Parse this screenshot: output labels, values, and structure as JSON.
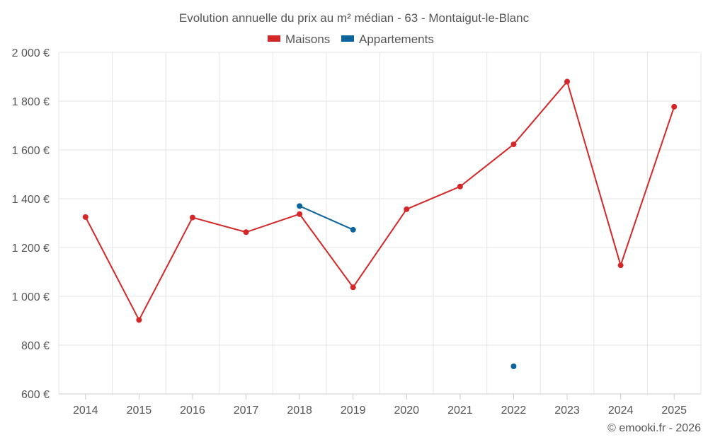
{
  "chart_data": {
    "type": "line",
    "title": "Evolution annuelle du prix au m² médian - 63 - Montaigut-le-Blanc",
    "categories": [
      "2014",
      "2015",
      "2016",
      "2017",
      "2018",
      "2019",
      "2020",
      "2021",
      "2022",
      "2023",
      "2024",
      "2025"
    ],
    "series": [
      {
        "name": "Maisons",
        "color": "#d62728",
        "values": [
          1325,
          903,
          1323,
          1263,
          1337,
          1037,
          1357,
          1450,
          1623,
          1880,
          1127,
          1777
        ]
      },
      {
        "name": "Appartements",
        "color": "#0c649c",
        "values": [
          null,
          null,
          null,
          null,
          1370,
          1273,
          null,
          null,
          713,
          null,
          null,
          null
        ]
      }
    ],
    "ylim": [
      600,
      2000
    ],
    "yticks": [
      600,
      800,
      1000,
      1200,
      1400,
      1600,
      1800,
      2000
    ],
    "ytick_labels": [
      "600 €",
      "800 €",
      "1 000 €",
      "1 200 €",
      "1 400 €",
      "1 600 €",
      "1 800 €",
      "2 000 €"
    ],
    "xlabel": "",
    "ylabel": "",
    "grid": true,
    "legend": "top-center"
  },
  "credit": "© emooki.fr - 2026"
}
